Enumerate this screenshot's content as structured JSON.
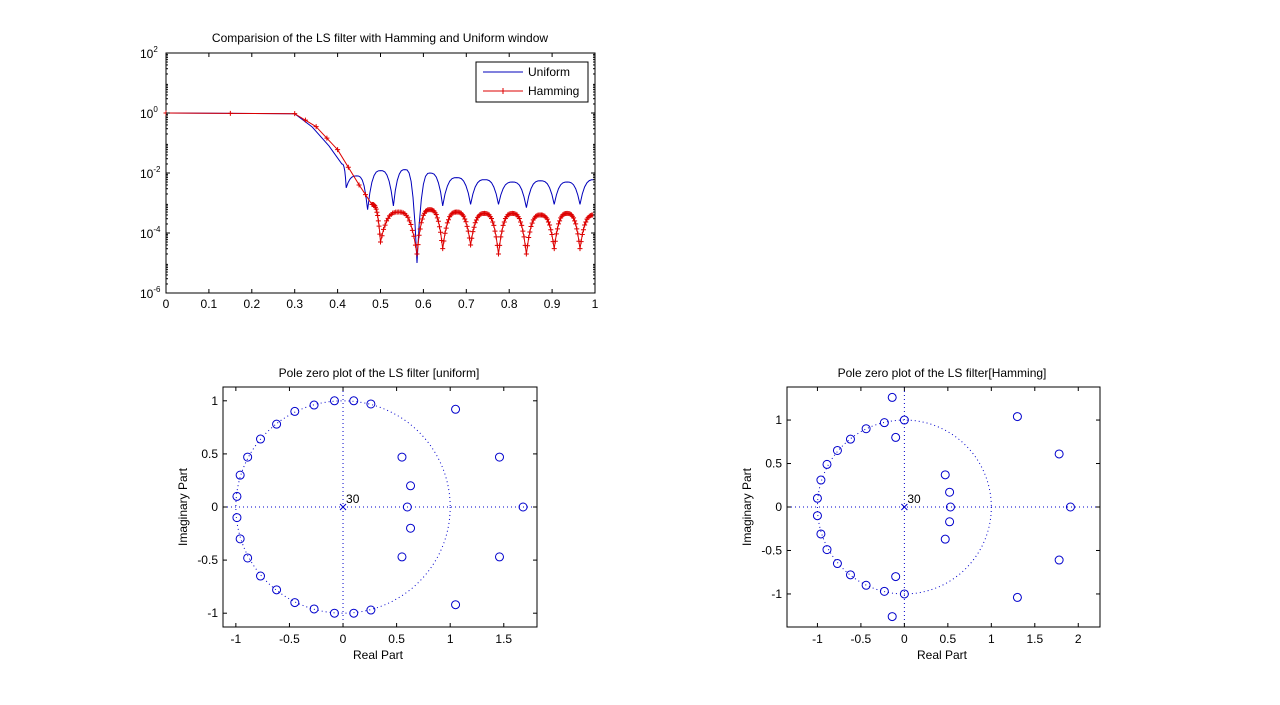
{
  "figure": {
    "background": "#ffffff"
  },
  "chart_data": [
    {
      "type": "line",
      "title": "Comparision of the LS filter with Hamming and Uniform window",
      "xlabel": "",
      "ylabel": "",
      "xlim": [
        0,
        1
      ],
      "ylim": [
        1e-06,
        100
      ],
      "yscale": "log",
      "xticks": [
        "0",
        "0.1",
        "0.2",
        "0.3",
        "0.4",
        "0.5",
        "0.6",
        "0.7",
        "0.8",
        "0.9",
        "1"
      ],
      "yticks": [
        {
          "base": "10",
          "exp": "2"
        },
        {
          "base": "10",
          "exp": "0"
        },
        {
          "base": "10",
          "exp": "-2"
        },
        {
          "base": "10",
          "exp": "-4"
        },
        {
          "base": "10",
          "exp": "-6"
        }
      ],
      "legend": {
        "position": "top-right"
      },
      "grid": false,
      "series": [
        {
          "name": "Uniform",
          "color": "#0000bb",
          "marker": "none",
          "passband": {
            "x": [
              0,
              0.3,
              0.34,
              0.38,
              0.41
            ],
            "y": [
              1,
              0.95,
              0.35,
              0.08,
              0.02
            ]
          },
          "nulls": [
            0.42,
            0.47,
            0.53,
            0.585,
            0.645,
            0.71,
            0.775,
            0.84,
            0.905,
            0.965
          ],
          "null_depth": [
            0.0032,
            0.0006,
            0.0008,
            1e-05,
            0.0008,
            0.0009,
            0.0009,
            0.0007,
            0.0009,
            0.0009
          ],
          "peaks": [
            0.008,
            0.012,
            0.013,
            0.01,
            0.007,
            0.006,
            0.005,
            0.0055,
            0.005,
            0.006
          ]
        },
        {
          "name": "Hamming",
          "color": "#dd0000",
          "marker": "+",
          "passband": {
            "x": [
              0,
              0.3,
              0.35,
              0.4,
              0.45,
              0.48
            ],
            "y": [
              1,
              0.95,
              0.35,
              0.06,
              0.004,
              0.0009
            ]
          },
          "nulls": [
            0.5,
            0.585,
            0.645,
            0.71,
            0.775,
            0.84,
            0.905,
            0.965
          ],
          "null_depth": [
            5e-05,
            2e-05,
            3e-05,
            4e-05,
            2e-05,
            2e-05,
            3e-05,
            3e-05
          ],
          "peaks": [
            0.0005,
            0.0006,
            0.0005,
            0.00045,
            0.00045,
            0.0004,
            0.00045,
            0.0004
          ]
        }
      ]
    },
    {
      "type": "scatter",
      "title": "Pole zero plot of the LS filter [uniform]",
      "xlabel": "Real Part",
      "ylabel": "Imaginary Part",
      "xlim": [
        -1.12,
        1.81
      ],
      "ylim": [
        -1.13,
        1.13
      ],
      "xticks": [
        -1,
        -0.5,
        0,
        0.5,
        1,
        1.5
      ],
      "xtick_labels": [
        "-1",
        "-0.5",
        "0",
        "0.5",
        "1",
        "1.5"
      ],
      "yticks": [
        1,
        0.5,
        0,
        -0.5,
        -1
      ],
      "ytick_labels": [
        "1",
        "0.5",
        "0",
        "-0.5",
        "-1"
      ],
      "unit_circle": true,
      "pole": {
        "x": 0,
        "y": 0,
        "multiplicity_label": "30"
      },
      "zeros": [
        [
          0.1,
          1.0
        ],
        [
          0.26,
          0.97
        ],
        [
          -0.08,
          1.0
        ],
        [
          -0.27,
          0.96
        ],
        [
          -0.45,
          0.9
        ],
        [
          -0.62,
          0.78
        ],
        [
          -0.77,
          0.64
        ],
        [
          -0.89,
          0.47
        ],
        [
          -0.96,
          0.3
        ],
        [
          -0.99,
          0.1
        ],
        [
          -0.99,
          -0.1
        ],
        [
          -0.96,
          -0.3
        ],
        [
          -0.89,
          -0.48
        ],
        [
          -0.77,
          -0.65
        ],
        [
          -0.62,
          -0.78
        ],
        [
          -0.45,
          -0.9
        ],
        [
          -0.27,
          -0.96
        ],
        [
          -0.08,
          -1.0
        ],
        [
          0.1,
          -1.0
        ],
        [
          0.26,
          -0.97
        ],
        [
          0.55,
          0.47
        ],
        [
          0.63,
          0.2
        ],
        [
          0.6,
          0.0
        ],
        [
          0.63,
          -0.2
        ],
        [
          0.55,
          -0.47
        ],
        [
          1.05,
          0.92
        ],
        [
          1.05,
          -0.92
        ],
        [
          1.46,
          0.47
        ],
        [
          1.46,
          -0.47
        ],
        [
          1.68,
          0.0
        ]
      ]
    },
    {
      "type": "scatter",
      "title": "Pole zero plot of the LS filter[Hamming]",
      "xlabel": "Real Part",
      "ylabel": "Imaginary Part",
      "xlim": [
        -1.35,
        2.25
      ],
      "ylim": [
        -1.38,
        1.38
      ],
      "xticks": [
        -1,
        -0.5,
        0,
        0.5,
        1,
        1.5,
        2
      ],
      "xtick_labels": [
        "-1",
        "-0.5",
        "0",
        "0.5",
        "1",
        "1.5",
        "2"
      ],
      "yticks": [
        1,
        0.5,
        0,
        -0.5,
        -1
      ],
      "ytick_labels": [
        "1",
        "0.5",
        "0",
        "-0.5",
        "-1"
      ],
      "unit_circle": true,
      "pole": {
        "x": 0,
        "y": 0,
        "multiplicity_label": "30"
      },
      "zeros": [
        [
          -0.14,
          1.26
        ],
        [
          0.0,
          1.0
        ],
        [
          -0.1,
          0.8
        ],
        [
          -0.23,
          0.97
        ],
        [
          -0.44,
          0.9
        ],
        [
          -0.62,
          0.78
        ],
        [
          -0.77,
          0.65
        ],
        [
          -0.89,
          0.49
        ],
        [
          -0.96,
          0.31
        ],
        [
          -1.0,
          0.1
        ],
        [
          -1.0,
          -0.1
        ],
        [
          -0.96,
          -0.31
        ],
        [
          -0.89,
          -0.49
        ],
        [
          -0.77,
          -0.65
        ],
        [
          -0.62,
          -0.78
        ],
        [
          -0.44,
          -0.9
        ],
        [
          -0.23,
          -0.97
        ],
        [
          0.0,
          -1.0
        ],
        [
          -0.1,
          -0.8
        ],
        [
          -0.14,
          -1.26
        ],
        [
          0.47,
          0.37
        ],
        [
          0.52,
          0.17
        ],
        [
          0.53,
          0.0
        ],
        [
          0.52,
          -0.17
        ],
        [
          0.47,
          -0.37
        ],
        [
          1.3,
          1.04
        ],
        [
          1.3,
          -1.04
        ],
        [
          1.78,
          0.61
        ],
        [
          1.78,
          -0.61
        ],
        [
          1.91,
          0.0
        ]
      ]
    }
  ]
}
